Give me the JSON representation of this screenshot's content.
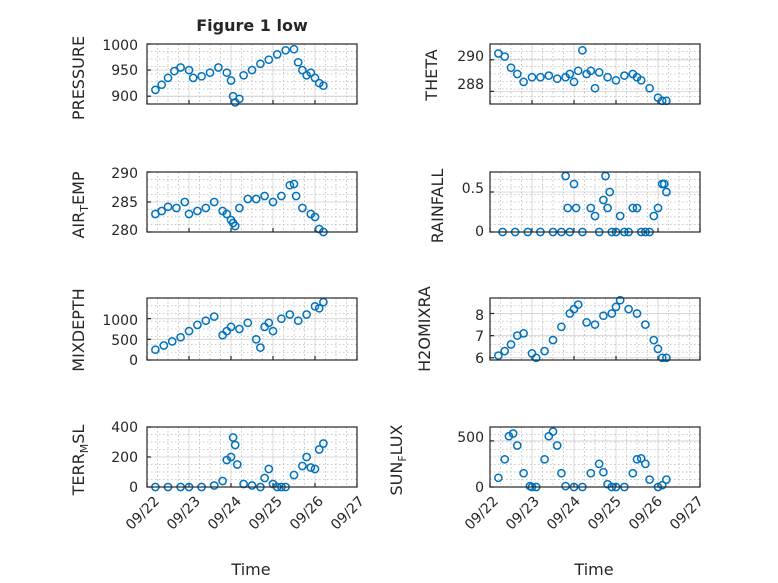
{
  "figure_title": "Figure 1 low",
  "colors": {
    "marker": "#0072BD",
    "axis": "#262626"
  },
  "chart_data": [
    {
      "type": "scatter",
      "title": "Figure 1 low",
      "ylabel": "PRESSURE",
      "ylim": [
        885,
        1000
      ],
      "yticks": [
        900,
        950,
        1000
      ],
      "x": [
        "09/22 0.2",
        "09/22 0.35",
        "09/22 0.5",
        "09/22 0.65",
        "09/22 0.8",
        "09/23 0.0",
        "09/23 0.1",
        "09/23 0.3",
        "09/23 0.5",
        "09/23 0.7",
        "09/23 0.9",
        "09/24 0.0",
        "09/24 0.05",
        "09/24 0.1",
        "09/24 0.2",
        "09/24 0.3",
        "09/24 0.5",
        "09/24 0.7",
        "09/24 0.9",
        "09/25 0.1",
        "09/25 0.3",
        "09/25 0.5",
        "09/25 0.6",
        "09/25 0.7",
        "09/25 0.8",
        "09/25 0.9",
        "09/26 0.0",
        "09/26 0.1",
        "09/26 0.2"
      ],
      "xd": [
        0.2,
        0.35,
        0.5,
        0.65,
        0.8,
        1.0,
        1.1,
        1.3,
        1.5,
        1.7,
        1.9,
        2.0,
        2.05,
        2.1,
        2.2,
        2.3,
        2.5,
        2.7,
        2.9,
        3.1,
        3.3,
        3.5,
        3.6,
        3.7,
        3.8,
        3.9,
        4.0,
        4.1,
        4.2
      ],
      "y": [
        912,
        922,
        935,
        948,
        955,
        950,
        935,
        938,
        945,
        955,
        945,
        930,
        900,
        888,
        895,
        940,
        950,
        962,
        970,
        980,
        988,
        990,
        965,
        950,
        940,
        945,
        935,
        925,
        920
      ]
    },
    {
      "type": "scatter",
      "ylabel": "THETA",
      "ylim": [
        287.2,
        291.0
      ],
      "yticks": [
        288,
        290
      ],
      "xd": [
        0.2,
        0.35,
        0.5,
        0.65,
        0.8,
        1.0,
        1.2,
        1.4,
        1.6,
        1.8,
        1.9,
        2.0,
        2.1,
        2.2,
        2.3,
        2.4,
        2.5,
        2.6,
        2.8,
        3.0,
        3.2,
        3.4,
        3.5,
        3.6,
        3.8,
        4.0,
        4.1,
        4.2
      ],
      "y": [
        290.4,
        290.2,
        289.5,
        289.1,
        288.6,
        288.9,
        288.9,
        289.0,
        288.8,
        288.9,
        289.1,
        288.6,
        289.3,
        290.6,
        289.1,
        289.3,
        288.2,
        289.2,
        288.9,
        288.7,
        289.0,
        289.1,
        288.9,
        288.7,
        288.2,
        287.6,
        287.4,
        287.4
      ]
    },
    {
      "type": "scatter",
      "ylabel": "AIR_TEMP",
      "ylim": [
        280,
        290
      ],
      "yticks": [
        280,
        285,
        290
      ],
      "xd": [
        0.2,
        0.35,
        0.5,
        0.7,
        0.9,
        1.0,
        1.2,
        1.4,
        1.6,
        1.8,
        1.9,
        2.0,
        2.05,
        2.1,
        2.2,
        2.4,
        2.6,
        2.8,
        3.0,
        3.2,
        3.4,
        3.5,
        3.55,
        3.7,
        3.9,
        4.0,
        4.1,
        4.2
      ],
      "y": [
        283.0,
        283.5,
        284.2,
        284.0,
        285.0,
        283.0,
        283.5,
        284.0,
        285.0,
        283.5,
        283.0,
        282.0,
        281.5,
        281.0,
        284.0,
        285.5,
        285.5,
        286.0,
        285.0,
        286.0,
        287.8,
        288.0,
        286.0,
        284.0,
        283.0,
        282.5,
        280.5,
        280.0
      ]
    },
    {
      "type": "scatter",
      "ylabel": "RAINFALL",
      "ylim": [
        0,
        0.75
      ],
      "yticks": [
        0,
        0.5
      ],
      "xd": [
        0.3,
        0.6,
        0.9,
        1.2,
        1.5,
        1.7,
        1.8,
        1.85,
        1.9,
        2.0,
        2.05,
        2.2,
        2.4,
        2.5,
        2.6,
        2.7,
        2.75,
        2.8,
        2.85,
        2.9,
        3.0,
        3.1,
        3.2,
        3.3,
        3.4,
        3.5,
        3.6,
        3.7,
        3.8,
        3.9,
        4.0,
        4.1,
        4.15,
        4.2
      ],
      "y": [
        0,
        0,
        0,
        0,
        0,
        0,
        0.7,
        0.3,
        0,
        0.6,
        0.3,
        0,
        0.3,
        0.2,
        0,
        0.4,
        0.7,
        0.3,
        0.5,
        0,
        0,
        0.2,
        0,
        0,
        0.3,
        0.3,
        0,
        0,
        0,
        0.2,
        0.3,
        0.6,
        0.6,
        0.5
      ]
    },
    {
      "type": "scatter",
      "ylabel": "MIXDEPTH",
      "ylim": [
        0,
        1500
      ],
      "yticks": [
        0,
        500,
        1000
      ],
      "xd": [
        0.2,
        0.4,
        0.6,
        0.8,
        1.0,
        1.2,
        1.4,
        1.6,
        1.8,
        1.9,
        2.0,
        2.2,
        2.4,
        2.6,
        2.7,
        2.8,
        2.9,
        3.0,
        3.2,
        3.4,
        3.6,
        3.8,
        4.0,
        4.1,
        4.2
      ],
      "y": [
        250,
        350,
        450,
        550,
        700,
        850,
        950,
        1050,
        600,
        700,
        800,
        750,
        900,
        500,
        300,
        800,
        900,
        700,
        1000,
        1100,
        950,
        1100,
        1300,
        1250,
        1400
      ]
    },
    {
      "type": "scatter",
      "ylabel": "H2OMIXRA",
      "ylim": [
        5.9,
        8.7
      ],
      "yticks": [
        6,
        7,
        8
      ],
      "xd": [
        0.2,
        0.35,
        0.5,
        0.65,
        0.8,
        1.0,
        1.1,
        1.3,
        1.5,
        1.7,
        1.9,
        2.0,
        2.1,
        2.3,
        2.5,
        2.7,
        2.9,
        3.0,
        3.1,
        3.3,
        3.5,
        3.7,
        3.9,
        4.0,
        4.1,
        4.2
      ],
      "y": [
        6.1,
        6.3,
        6.6,
        7.0,
        7.1,
        6.2,
        6.0,
        6.3,
        6.8,
        7.4,
        8.0,
        8.2,
        8.4,
        7.6,
        7.5,
        7.9,
        8.0,
        8.3,
        8.6,
        8.2,
        8.0,
        7.5,
        6.8,
        6.4,
        6.0,
        6.0
      ]
    },
    {
      "type": "scatter",
      "ylabel": "TERR_MSL",
      "ylim": [
        0,
        400
      ],
      "yticks": [
        0,
        200,
        400
      ],
      "xd": [
        0.2,
        0.5,
        0.8,
        1.0,
        1.3,
        1.6,
        1.8,
        1.9,
        2.0,
        2.05,
        2.1,
        2.15,
        2.3,
        2.5,
        2.7,
        2.8,
        2.9,
        3.0,
        3.1,
        3.2,
        3.3,
        3.5,
        3.7,
        3.8,
        3.9,
        4.0,
        4.1,
        4.2
      ],
      "y": [
        0,
        0,
        0,
        0,
        0,
        10,
        40,
        180,
        200,
        330,
        280,
        150,
        20,
        10,
        0,
        60,
        120,
        20,
        0,
        0,
        0,
        80,
        140,
        200,
        130,
        120,
        250,
        290
      ]
    },
    {
      "type": "scatter",
      "ylabel": "SUN_FLUX",
      "ylim": [
        0,
        650
      ],
      "yticks": [
        0,
        500
      ],
      "xd": [
        0.2,
        0.35,
        0.45,
        0.55,
        0.65,
        0.8,
        0.95,
        1.0,
        1.1,
        1.3,
        1.4,
        1.5,
        1.6,
        1.7,
        1.8,
        2.0,
        2.2,
        2.4,
        2.6,
        2.7,
        2.8,
        2.9,
        3.0,
        3.2,
        3.4,
        3.5,
        3.6,
        3.7,
        3.8,
        4.0,
        4.1,
        4.2
      ],
      "y": [
        100,
        300,
        550,
        580,
        450,
        150,
        10,
        0,
        0,
        300,
        550,
        600,
        450,
        150,
        10,
        0,
        0,
        150,
        250,
        160,
        30,
        0,
        0,
        0,
        150,
        300,
        310,
        250,
        80,
        0,
        20,
        80
      ]
    }
  ],
  "xaxis": {
    "ticks": [
      "09/22",
      "09/23",
      "09/24",
      "09/25",
      "09/26",
      "09/27"
    ],
    "label": "Time"
  },
  "ylabels": {
    "pressure": "PRESSURE",
    "theta": "THETA",
    "air_temp_main": "AIR",
    "air_temp_sub": "T",
    "air_temp_tail": "EMP",
    "rainfall": "RAINFALL",
    "mixdepth": "MIXDEPTH",
    "h2omixra": "H2OMIXRA",
    "terr_main": "TERR",
    "terr_sub": "M",
    "terr_tail": "SL",
    "sun_main": "SUN",
    "sun_sub": "F",
    "sun_tail": "LUX"
  },
  "yticklabels": {
    "pressure": [
      "900",
      "950",
      "1000"
    ],
    "theta": [
      "288",
      "290"
    ],
    "air_temp": [
      "280",
      "285",
      "290"
    ],
    "rainfall": [
      "0",
      "0.5"
    ],
    "mixdepth": [
      "0",
      "500",
      "1000"
    ],
    "h2omixra": [
      "6",
      "7",
      "8"
    ],
    "terr": [
      "0",
      "200",
      "400"
    ],
    "sun": [
      "0",
      "500"
    ]
  }
}
